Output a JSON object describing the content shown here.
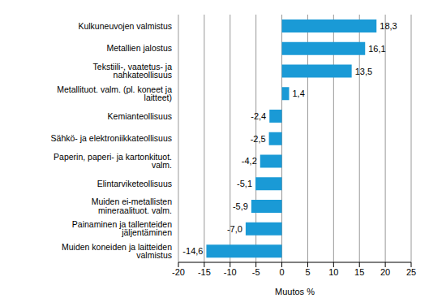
{
  "chart_data": {
    "type": "bar",
    "orientation": "horizontal",
    "categories": [
      "Kulkuneuvojen valmistus",
      "Metallien jalostus",
      "Tekstiili-, vaatetus- ja nahkateollisuus",
      "Metallituot. valm. (pl. koneet ja laitteet)",
      "Kemianteollisuus",
      "Sähkö- ja elektroniikkateollisuus",
      "Paperin, paperi- ja kartonkituot. valm.",
      "Elintarviketeollisuus",
      "Muiden ei-metallisten mineraalituot. valm.",
      "Painaminen ja tallenteiden jäljentäminen",
      "Muiden koneiden ja laitteiden valmistus"
    ],
    "values": [
      18.3,
      16.1,
      13.5,
      1.4,
      -2.4,
      -2.5,
      -4.2,
      -5.1,
      -5.9,
      -7.0,
      -14.6
    ],
    "value_labels": [
      "18,3",
      "16,1",
      "13,5",
      "1,4",
      "-2,4",
      "-2,5",
      "-4,2",
      "-5,1",
      "-5,9",
      "-7,0",
      "-14,6"
    ],
    "data_labels": true,
    "color": "#1a9ad6",
    "xlabel": "Muutos %",
    "xlim": [
      -20,
      25
    ],
    "xticks": [
      -20,
      -15,
      -10,
      -5,
      0,
      5,
      10,
      15,
      20,
      25
    ],
    "grid": true
  }
}
